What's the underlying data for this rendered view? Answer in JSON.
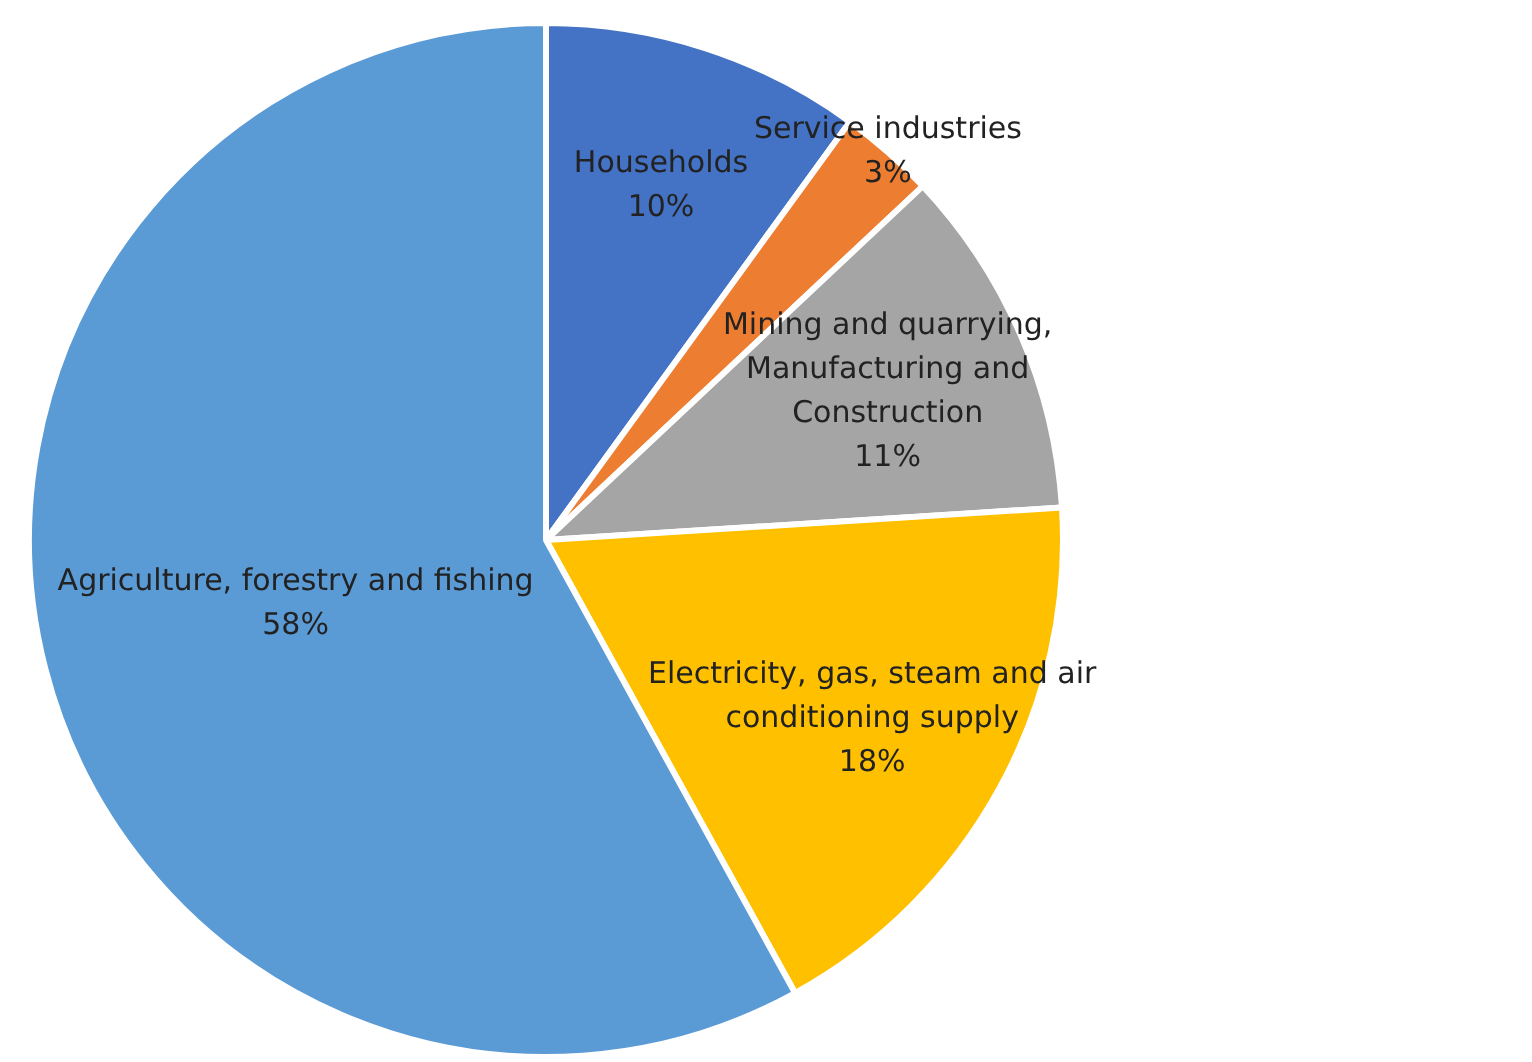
{
  "chart_data": {
    "type": "pie",
    "categories": [
      "Households",
      "Service industries",
      "Mining and quarrying, Manufacturing and Construction",
      "Electricity, gas, steam and air conditioning supply",
      "Agriculture, forestry and fishing"
    ],
    "values": [
      10,
      3,
      11,
      18,
      58
    ],
    "colors": [
      "#4472c4",
      "#ed7d31",
      "#a5a5a5",
      "#ffc000",
      "#5b9bd5"
    ],
    "value_labels": [
      "10%",
      "3%",
      "11%",
      "18%",
      "58%"
    ],
    "legend": false
  }
}
